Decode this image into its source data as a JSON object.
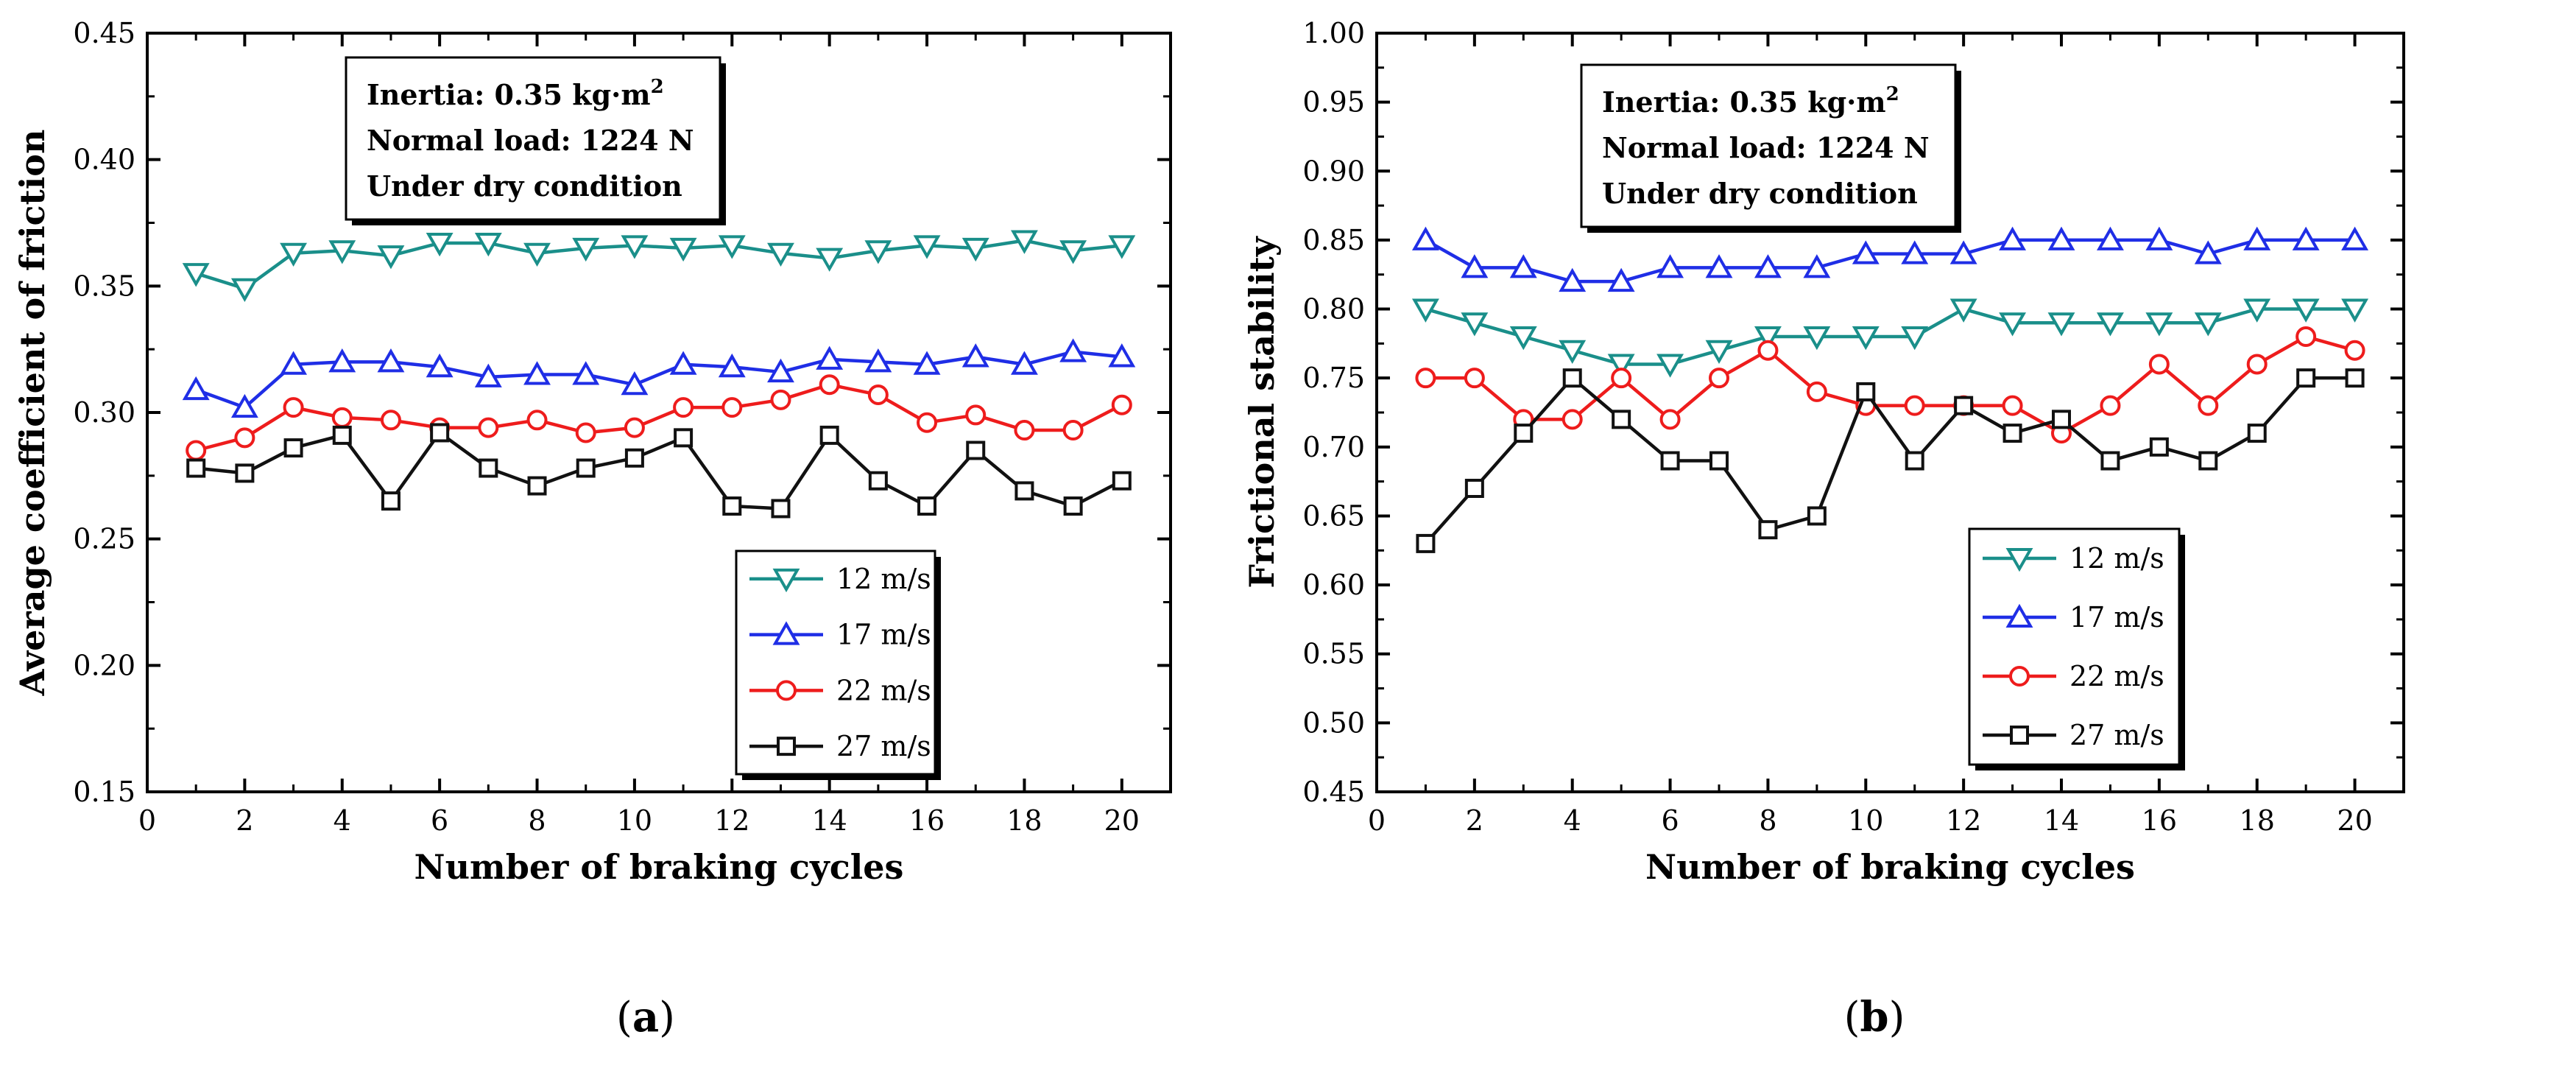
{
  "colors": {
    "s12": "#1a8f8a",
    "s17": "#1f2ee6",
    "s22": "#ee1c1c",
    "s27": "#111111"
  },
  "chart_data": [
    {
      "type": "line",
      "panel_label": "a",
      "xlabel": "Number of braking cycles",
      "ylabel": "Average coefficient of friction",
      "xlim": [
        0,
        21
      ],
      "ylim": [
        0.15,
        0.45
      ],
      "xticks": [
        0,
        2,
        4,
        6,
        8,
        10,
        12,
        14,
        16,
        18,
        20
      ],
      "yticks": [
        "0.15",
        "0.20",
        "0.25",
        "0.30",
        "0.35",
        "0.40",
        "0.45"
      ],
      "legend_position": "bottom-right",
      "annotations": [
        {
          "prefix": "Inertia: 0.35 kg·m",
          "sup": "2"
        },
        {
          "prefix": "Normal load: 1224 N",
          "sup": ""
        },
        {
          "prefix": "Under dry condition",
          "sup": ""
        }
      ],
      "x": [
        1,
        2,
        3,
        4,
        5,
        6,
        7,
        8,
        9,
        10,
        11,
        12,
        13,
        14,
        15,
        16,
        17,
        18,
        19,
        20
      ],
      "series": [
        {
          "name": "12 m/s",
          "color": "#1a8f8a",
          "marker": "triangle-down",
          "values": [
            0.355,
            0.349,
            0.363,
            0.364,
            0.362,
            0.367,
            0.367,
            0.363,
            0.365,
            0.366,
            0.365,
            0.366,
            0.363,
            0.361,
            0.364,
            0.366,
            0.365,
            0.368,
            0.364,
            0.366
          ]
        },
        {
          "name": "17 m/s",
          "color": "#1f2ee6",
          "marker": "triangle-up",
          "values": [
            0.309,
            0.302,
            0.319,
            0.32,
            0.32,
            0.318,
            0.314,
            0.315,
            0.315,
            0.311,
            0.319,
            0.318,
            0.316,
            0.321,
            0.32,
            0.319,
            0.322,
            0.319,
            0.324,
            0.322
          ]
        },
        {
          "name": "22 m/s",
          "color": "#ee1c1c",
          "marker": "circle",
          "values": [
            0.285,
            0.29,
            0.302,
            0.298,
            0.297,
            0.294,
            0.294,
            0.297,
            0.292,
            0.294,
            0.302,
            0.302,
            0.305,
            0.311,
            0.307,
            0.296,
            0.299,
            0.293,
            0.293,
            0.303
          ]
        },
        {
          "name": "27 m/s",
          "color": "#111111",
          "marker": "square",
          "values": [
            0.278,
            0.276,
            0.286,
            0.291,
            0.265,
            0.292,
            0.278,
            0.271,
            0.278,
            0.282,
            0.29,
            0.263,
            0.262,
            0.291,
            0.273,
            0.263,
            0.285,
            0.269,
            0.263,
            0.273
          ]
        }
      ]
    },
    {
      "type": "line",
      "panel_label": "b",
      "xlabel": "Number of braking cycles",
      "ylabel": "Frictional stability",
      "xlim": [
        0,
        21
      ],
      "ylim": [
        0.45,
        1.0
      ],
      "xticks": [
        0,
        2,
        4,
        6,
        8,
        10,
        12,
        14,
        16,
        18,
        20
      ],
      "yticks": [
        "0.45",
        "0.50",
        "0.55",
        "0.60",
        "0.65",
        "0.70",
        "0.75",
        "0.80",
        "0.85",
        "0.90",
        "0.95",
        "1.00"
      ],
      "legend_position": "bottom-right",
      "annotations": [
        {
          "prefix": "Inertia: 0.35 kg·m",
          "sup": "2"
        },
        {
          "prefix": "Normal load: 1224 N",
          "sup": ""
        },
        {
          "prefix": "Under dry condition",
          "sup": ""
        }
      ],
      "x": [
        1,
        2,
        3,
        4,
        5,
        6,
        7,
        8,
        9,
        10,
        11,
        12,
        13,
        14,
        15,
        16,
        17,
        18,
        19,
        20
      ],
      "series": [
        {
          "name": "12 m/s",
          "color": "#1a8f8a",
          "marker": "triangle-down",
          "values": [
            0.8,
            0.79,
            0.78,
            0.77,
            0.76,
            0.76,
            0.77,
            0.78,
            0.78,
            0.78,
            0.78,
            0.8,
            0.79,
            0.79,
            0.79,
            0.79,
            0.79,
            0.8,
            0.8,
            0.8
          ]
        },
        {
          "name": "17 m/s",
          "color": "#1f2ee6",
          "marker": "triangle-up",
          "values": [
            0.85,
            0.83,
            0.83,
            0.82,
            0.82,
            0.83,
            0.83,
            0.83,
            0.83,
            0.84,
            0.84,
            0.84,
            0.85,
            0.85,
            0.85,
            0.85,
            0.84,
            0.85,
            0.85,
            0.85
          ]
        },
        {
          "name": "22 m/s",
          "color": "#ee1c1c",
          "marker": "circle",
          "values": [
            0.75,
            0.75,
            0.72,
            0.72,
            0.75,
            0.72,
            0.75,
            0.77,
            0.74,
            0.73,
            0.73,
            0.73,
            0.73,
            0.71,
            0.73,
            0.76,
            0.73,
            0.76,
            0.78,
            0.77
          ]
        },
        {
          "name": "27 m/s",
          "color": "#111111",
          "marker": "square",
          "values": [
            0.63,
            0.67,
            0.71,
            0.75,
            0.72,
            0.69,
            0.69,
            0.64,
            0.65,
            0.74,
            0.69,
            0.73,
            0.71,
            0.72,
            0.69,
            0.7,
            0.69,
            0.71,
            0.75,
            0.75
          ]
        }
      ]
    }
  ]
}
